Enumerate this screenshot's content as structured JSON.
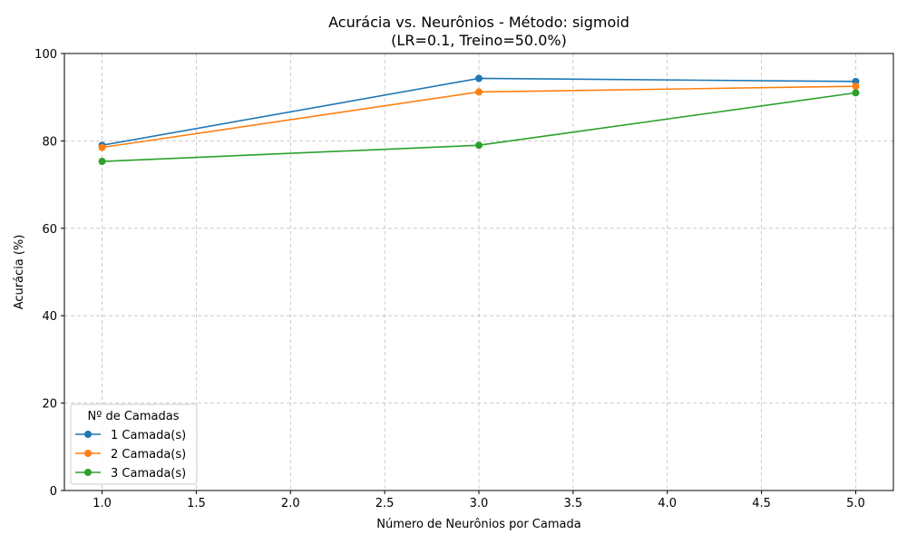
{
  "chart_data": {
    "type": "line",
    "title": "Acurácia vs. Neurônios - Método: sigmoid",
    "subtitle": "(LR=0.1, Treino=50.0%)",
    "xlabel": "Número de Neurônios por Camada",
    "ylabel": "Acurácia (%)",
    "xlim": [
      0.8,
      5.2
    ],
    "ylim": [
      0,
      100
    ],
    "x_ticks": [
      "1.0",
      "1.5",
      "2.0",
      "2.5",
      "3.0",
      "3.5",
      "4.0",
      "4.5",
      "5.0"
    ],
    "y_ticks": [
      "0",
      "20",
      "40",
      "60",
      "80",
      "100"
    ],
    "grid": true,
    "legend_title": "Nº de Camadas",
    "legend_position": "lower-left",
    "x": [
      1,
      3,
      5
    ],
    "series": [
      {
        "name": "1 Camada(s)",
        "color": "#1f77b4",
        "values": [
          79.0,
          94.3,
          93.6
        ]
      },
      {
        "name": "2 Camada(s)",
        "color": "#ff7f0e",
        "values": [
          78.5,
          91.2,
          92.5
        ]
      },
      {
        "name": "3 Camada(s)",
        "color": "#2ca02c",
        "values": [
          75.3,
          79.0,
          91.0
        ]
      }
    ]
  }
}
